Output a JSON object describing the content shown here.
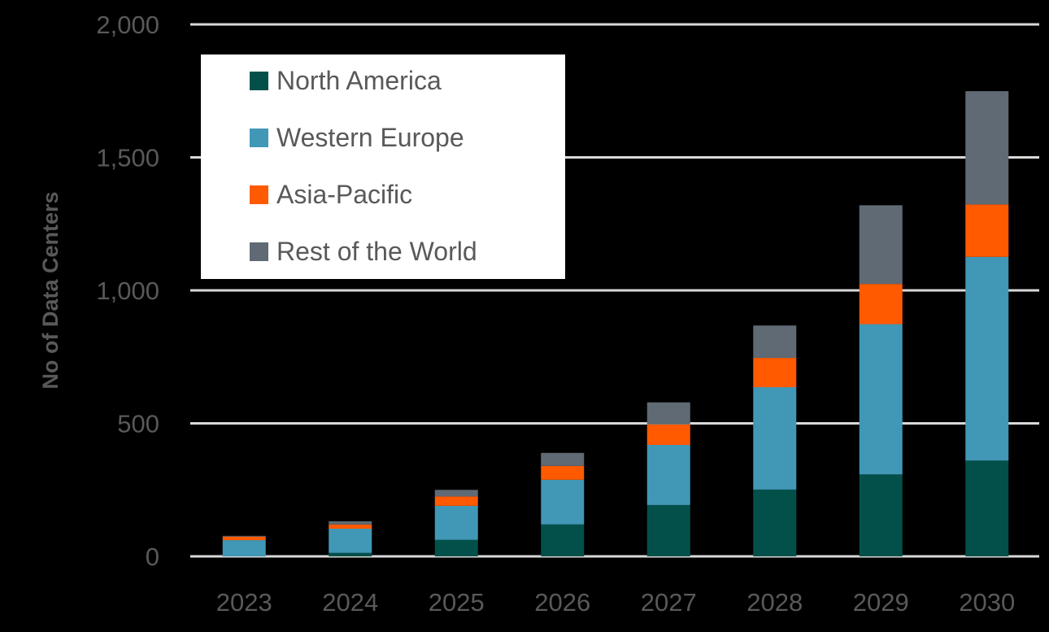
{
  "chart_data": {
    "type": "bar",
    "stacked": true,
    "title": "",
    "xlabel": "",
    "ylabel": "No of Data Centers",
    "ylim": [
      0,
      2000
    ],
    "yticks": [
      0,
      500,
      1000,
      1500,
      2000
    ],
    "ytick_labels": [
      "0",
      "500",
      "1,000",
      "1,500",
      "2,000"
    ],
    "grid": true,
    "legend_position": "upper-left",
    "categories": [
      "2023",
      "2024",
      "2025",
      "2026",
      "2027",
      "2028",
      "2029",
      "2030"
    ],
    "series": [
      {
        "name": "North America",
        "color": "#03504A",
        "values": [
          0,
          13,
          62,
          120,
          193,
          251,
          308,
          360
        ]
      },
      {
        "name": "Western Europe",
        "color": "#4197B6",
        "values": [
          61,
          91,
          128,
          168,
          226,
          385,
          565,
          766
        ]
      },
      {
        "name": "Asia-Pacific",
        "color": "#FF5A00",
        "values": [
          13,
          16,
          35,
          52,
          77,
          110,
          151,
          197
        ]
      },
      {
        "name": "Rest of the World",
        "color": "#5F6A74",
        "values": [
          3,
          12,
          25,
          49,
          83,
          122,
          296,
          426
        ]
      }
    ]
  },
  "style": {
    "background": "#000000",
    "gridline_color": "#D9D9D9",
    "text_color": "#595959",
    "legend_background": "#FFFFFF"
  }
}
